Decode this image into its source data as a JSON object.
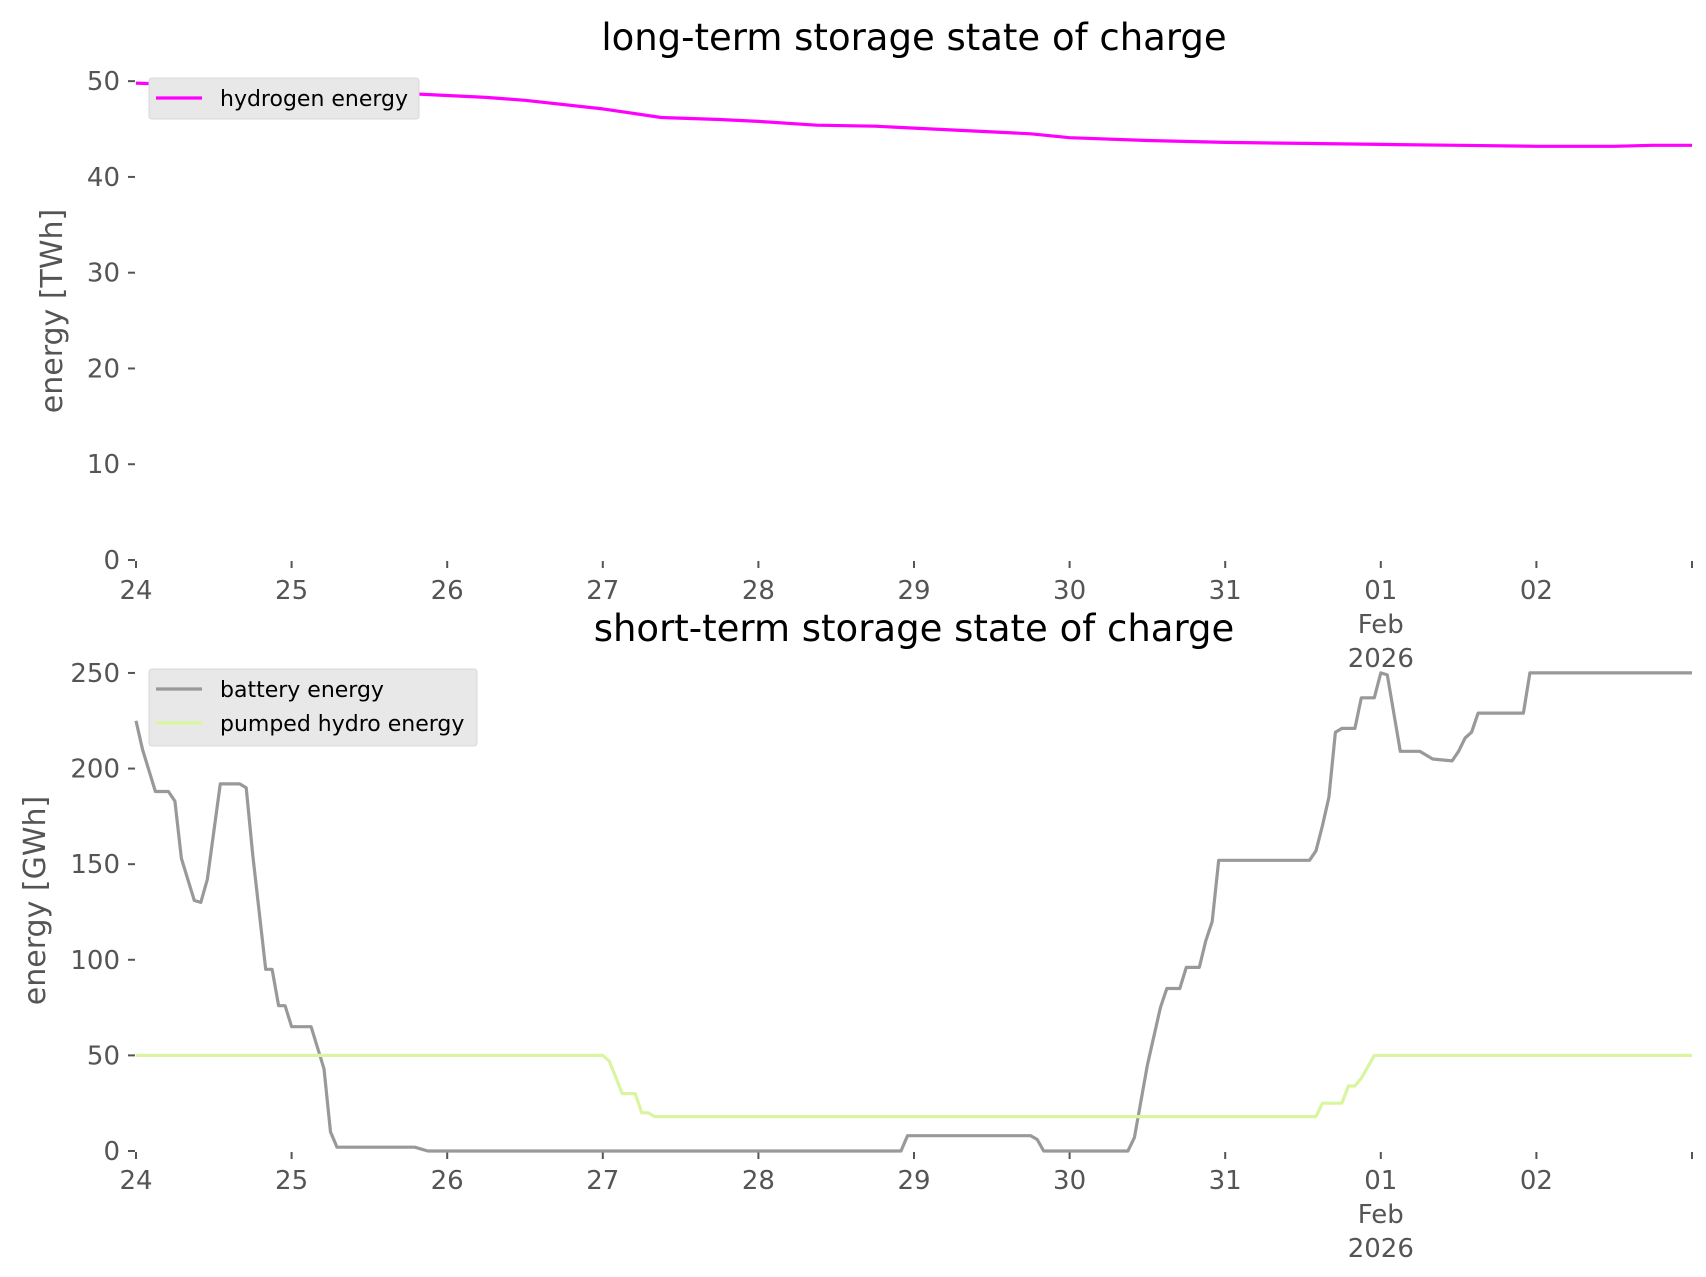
{
  "chart_data": [
    {
      "type": "line",
      "title": "long-term storage state of charge",
      "ylabel": "energy [TWh]",
      "xlabel": "",
      "ylim": [
        0,
        52
      ],
      "xlim": [
        "2026-01-24",
        "2026-02-03"
      ],
      "yticks": [
        "0",
        "10",
        "20",
        "30",
        "40",
        "50"
      ],
      "xticks": [
        {
          "date": "2026-01-24",
          "label": "24"
        },
        {
          "date": "2026-01-25",
          "label": "25"
        },
        {
          "date": "2026-01-26",
          "label": "26"
        },
        {
          "date": "2026-01-27",
          "label": "27"
        },
        {
          "date": "2026-01-28",
          "label": "28"
        },
        {
          "date": "2026-01-29",
          "label": "29"
        },
        {
          "date": "2026-01-30",
          "label": "30"
        },
        {
          "date": "2026-01-31",
          "label": "31"
        },
        {
          "date": "2026-02-01",
          "label": "01\nFeb\n2026"
        },
        {
          "date": "2026-02-02",
          "label": "02"
        }
      ],
      "legend_position": "top-left",
      "grid": false,
      "series": [
        {
          "name": "hydrogen energy",
          "color": "#ff00ff",
          "points": [
            [
              "2026-01-24T00:00",
              49.8
            ],
            [
              "2026-01-24T12:00",
              49.5
            ],
            [
              "2026-01-25T00:00",
              49.3
            ],
            [
              "2026-01-25T12:00",
              48.9
            ],
            [
              "2026-01-26T00:00",
              48.5
            ],
            [
              "2026-01-26T06:00",
              48.3
            ],
            [
              "2026-01-26T12:00",
              48.0
            ],
            [
              "2026-01-27T00:00",
              47.1
            ],
            [
              "2026-01-27T09:00",
              46.2
            ],
            [
              "2026-01-27T18:00",
              46.0
            ],
            [
              "2026-01-28T00:00",
              45.8
            ],
            [
              "2026-01-28T09:00",
              45.4
            ],
            [
              "2026-01-28T18:00",
              45.3
            ],
            [
              "2026-01-29T00:00",
              45.1
            ],
            [
              "2026-01-29T12:00",
              44.7
            ],
            [
              "2026-01-29T18:00",
              44.5
            ],
            [
              "2026-01-30T00:00",
              44.1
            ],
            [
              "2026-01-30T12:00",
              43.8
            ],
            [
              "2026-01-31T00:00",
              43.6
            ],
            [
              "2026-01-31T12:00",
              43.5
            ],
            [
              "2026-02-01T00:00",
              43.4
            ],
            [
              "2026-02-01T12:00",
              43.3
            ],
            [
              "2026-02-02T00:00",
              43.2
            ],
            [
              "2026-02-02T12:00",
              43.2
            ],
            [
              "2026-02-02T18:00",
              43.3
            ],
            [
              "2026-02-03T00:00",
              43.3
            ]
          ]
        }
      ]
    },
    {
      "type": "line",
      "title": "short-term storage state of charge",
      "ylabel": "energy [GWh]",
      "xlabel": "",
      "ylim": [
        0,
        262
      ],
      "xlim": [
        "2026-01-24",
        "2026-02-03"
      ],
      "yticks": [
        "0",
        "50",
        "100",
        "150",
        "200",
        "250"
      ],
      "xticks": [
        {
          "date": "2026-01-24",
          "label": "24"
        },
        {
          "date": "2026-01-25",
          "label": "25"
        },
        {
          "date": "2026-01-26",
          "label": "26"
        },
        {
          "date": "2026-01-27",
          "label": "27"
        },
        {
          "date": "2026-01-28",
          "label": "28"
        },
        {
          "date": "2026-01-29",
          "label": "29"
        },
        {
          "date": "2026-01-30",
          "label": "30"
        },
        {
          "date": "2026-01-31",
          "label": "31"
        },
        {
          "date": "2026-02-01",
          "label": "01\nFeb\n2026"
        },
        {
          "date": "2026-02-02",
          "label": "02"
        }
      ],
      "legend_position": "top-left",
      "grid": false,
      "series": [
        {
          "name": "battery energy",
          "color": "#999999",
          "points": [
            [
              "2026-01-24T00:00",
              225
            ],
            [
              "2026-01-24T01:00",
              210
            ],
            [
              "2026-01-24T03:00",
              188
            ],
            [
              "2026-01-24T05:00",
              188
            ],
            [
              "2026-01-24T06:00",
              183
            ],
            [
              "2026-01-24T07:00",
              153
            ],
            [
              "2026-01-24T09:00",
              131
            ],
            [
              "2026-01-24T10:00",
              130
            ],
            [
              "2026-01-24T11:00",
              142
            ],
            [
              "2026-01-24T13:00",
              192
            ],
            [
              "2026-01-24T16:00",
              192
            ],
            [
              "2026-01-24T17:00",
              190
            ],
            [
              "2026-01-24T18:00",
              155
            ],
            [
              "2026-01-24T20:00",
              95
            ],
            [
              "2026-01-24T21:00",
              95
            ],
            [
              "2026-01-24T22:00",
              76
            ],
            [
              "2026-01-24T23:00",
              76
            ],
            [
              "2026-01-25T00:00",
              65
            ],
            [
              "2026-01-25T03:00",
              65
            ],
            [
              "2026-01-25T05:00",
              43
            ],
            [
              "2026-01-25T06:00",
              10
            ],
            [
              "2026-01-25T07:00",
              2
            ],
            [
              "2026-01-25T19:00",
              2
            ],
            [
              "2026-01-25T21:00",
              0
            ],
            [
              "2026-01-28T22:00",
              0
            ],
            [
              "2026-01-28T23:00",
              8
            ],
            [
              "2026-01-29T18:00",
              8
            ],
            [
              "2026-01-29T19:00",
              6
            ],
            [
              "2026-01-29T20:00",
              0
            ],
            [
              "2026-01-30T09:00",
              0
            ],
            [
              "2026-01-30T10:00",
              7
            ],
            [
              "2026-01-30T12:00",
              45
            ],
            [
              "2026-01-30T14:00",
              75
            ],
            [
              "2026-01-30T15:00",
              85
            ],
            [
              "2026-01-30T17:00",
              85
            ],
            [
              "2026-01-30T18:00",
              96
            ],
            [
              "2026-01-30T20:00",
              96
            ],
            [
              "2026-01-30T21:00",
              110
            ],
            [
              "2026-01-30T22:00",
              120
            ],
            [
              "2026-01-30T23:00",
              152
            ],
            [
              "2026-01-31T13:00",
              152
            ],
            [
              "2026-01-31T14:00",
              157
            ],
            [
              "2026-01-31T15:00",
              170
            ],
            [
              "2026-01-31T16:00",
              185
            ],
            [
              "2026-01-31T17:00",
              219
            ],
            [
              "2026-01-31T18:00",
              221
            ],
            [
              "2026-01-31T20:00",
              221
            ],
            [
              "2026-01-31T21:00",
              237
            ],
            [
              "2026-01-31T23:00",
              237
            ],
            [
              "2026-02-01T00:00",
              250
            ],
            [
              "2026-02-01T01:00",
              249
            ],
            [
              "2026-02-01T03:00",
              209
            ],
            [
              "2026-02-01T06:00",
              209
            ],
            [
              "2026-02-01T08:00",
              205
            ],
            [
              "2026-02-01T11:00",
              204
            ],
            [
              "2026-02-01T12:00",
              209
            ],
            [
              "2026-02-01T13:00",
              216
            ],
            [
              "2026-02-01T14:00",
              219
            ],
            [
              "2026-02-01T15:00",
              229
            ],
            [
              "2026-02-01T22:00",
              229
            ],
            [
              "2026-02-01T23:00",
              250
            ],
            [
              "2026-02-03T00:00",
              250
            ]
          ]
        },
        {
          "name": "pumped hydro energy",
          "color": "#d9f5a0",
          "points": [
            [
              "2026-01-24T00:00",
              50
            ],
            [
              "2026-01-27T00:00",
              50
            ],
            [
              "2026-01-27T01:00",
              47
            ],
            [
              "2026-01-27T03:00",
              30
            ],
            [
              "2026-01-27T05:00",
              30
            ],
            [
              "2026-01-27T06:00",
              20
            ],
            [
              "2026-01-27T07:00",
              20
            ],
            [
              "2026-01-27T08:00",
              18
            ],
            [
              "2026-01-31T14:00",
              18
            ],
            [
              "2026-01-31T15:00",
              25
            ],
            [
              "2026-01-31T18:00",
              25
            ],
            [
              "2026-01-31T19:00",
              34
            ],
            [
              "2026-01-31T20:00",
              34
            ],
            [
              "2026-01-31T21:00",
              38
            ],
            [
              "2026-01-31T23:00",
              50
            ],
            [
              "2026-02-03T00:00",
              50
            ]
          ]
        }
      ]
    }
  ]
}
